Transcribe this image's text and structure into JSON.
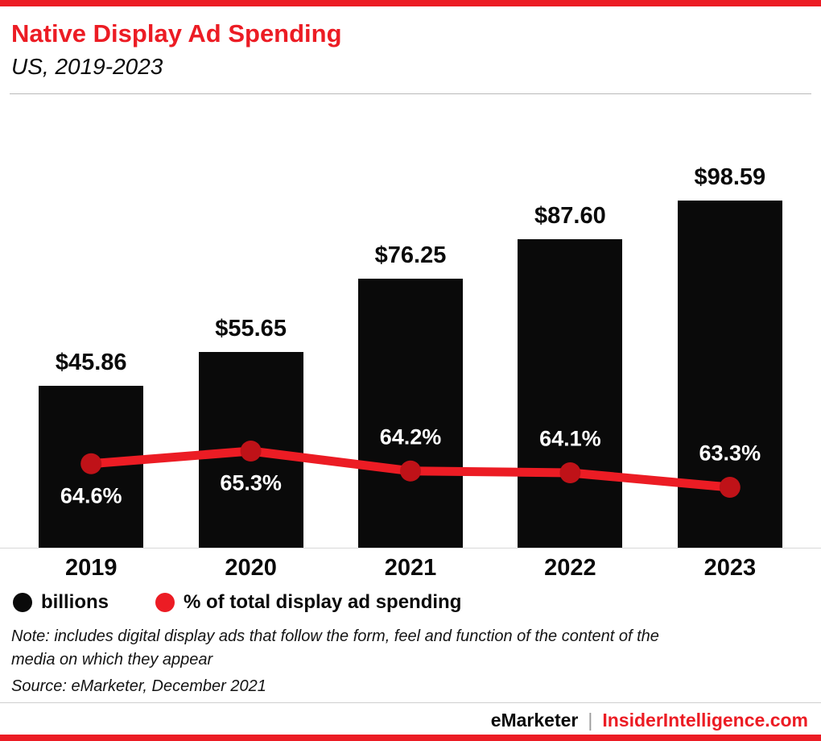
{
  "header": {
    "title": "Native Display Ad Spending",
    "subtitle": "US, 2019-2023"
  },
  "chart_data": {
    "type": "bar",
    "subtype": "bar-with-line-overlay",
    "title": "Native Display Ad Spending",
    "subtitle": "US, 2019-2023",
    "categories": [
      "2019",
      "2020",
      "2021",
      "2022",
      "2023"
    ],
    "series": [
      {
        "name": "billions",
        "type": "bar",
        "values": [
          45.86,
          55.65,
          76.25,
          87.6,
          98.59
        ],
        "labels": [
          "$45.86",
          "$55.65",
          "$76.25",
          "$87.60",
          "$98.59"
        ],
        "color": "#0a0a0a"
      },
      {
        "name": "% of total display ad spending",
        "type": "line",
        "values": [
          64.6,
          65.3,
          64.2,
          64.1,
          63.3
        ],
        "labels": [
          "64.6%",
          "65.3%",
          "64.2%",
          "64.1%",
          "63.3%"
        ],
        "color": "#ec1c24",
        "marker_color": "#bf1218"
      }
    ],
    "ylim": [
      0,
      120
    ],
    "grid": false,
    "legend_position": "bottom-left",
    "xlabel": "",
    "ylabel": ""
  },
  "legend": {
    "items": [
      {
        "label": "billions",
        "color": "#0a0a0a"
      },
      {
        "label": "% of total display ad spending",
        "color": "#ec1c24"
      }
    ]
  },
  "notes": {
    "note": "Note: includes digital display ads that follow the form, feel and function of the content of the media on which they appear",
    "source": "Source: eMarketer, December 2021"
  },
  "footer": {
    "brand": "eMarketer",
    "separator": "|",
    "site": "InsiderIntelligence.com"
  },
  "colors": {
    "accent_red": "#ec1c24",
    "bar_black": "#0a0a0a",
    "marker_red": "#bf1218",
    "axis_line": "#d8d8d8",
    "separator_gray": "#9b9b9b"
  }
}
